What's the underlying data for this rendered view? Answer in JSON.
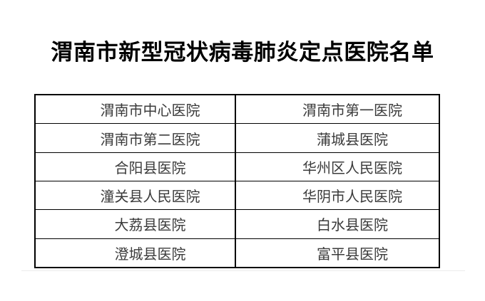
{
  "title": "渭南市新型冠状病毒肺炎定点医院名单",
  "table": {
    "rows": [
      {
        "left": "渭南市中心医院",
        "right": "渭南市第一医院"
      },
      {
        "left": "渭南市第二医院",
        "right": "蒲城县医院"
      },
      {
        "left": "合阳县医院",
        "right": "华州区人民医院"
      },
      {
        "left": "潼关县人民医院",
        "right": "华阴市人民医院"
      },
      {
        "left": "大荔县医院",
        "right": "白水县医院"
      },
      {
        "left": "澄城县医院",
        "right": "富平县医院"
      }
    ]
  },
  "colors": {
    "background": "#ffffff",
    "title_text": "#000000",
    "cell_text": "#3b3b3b",
    "border": "#000000"
  }
}
